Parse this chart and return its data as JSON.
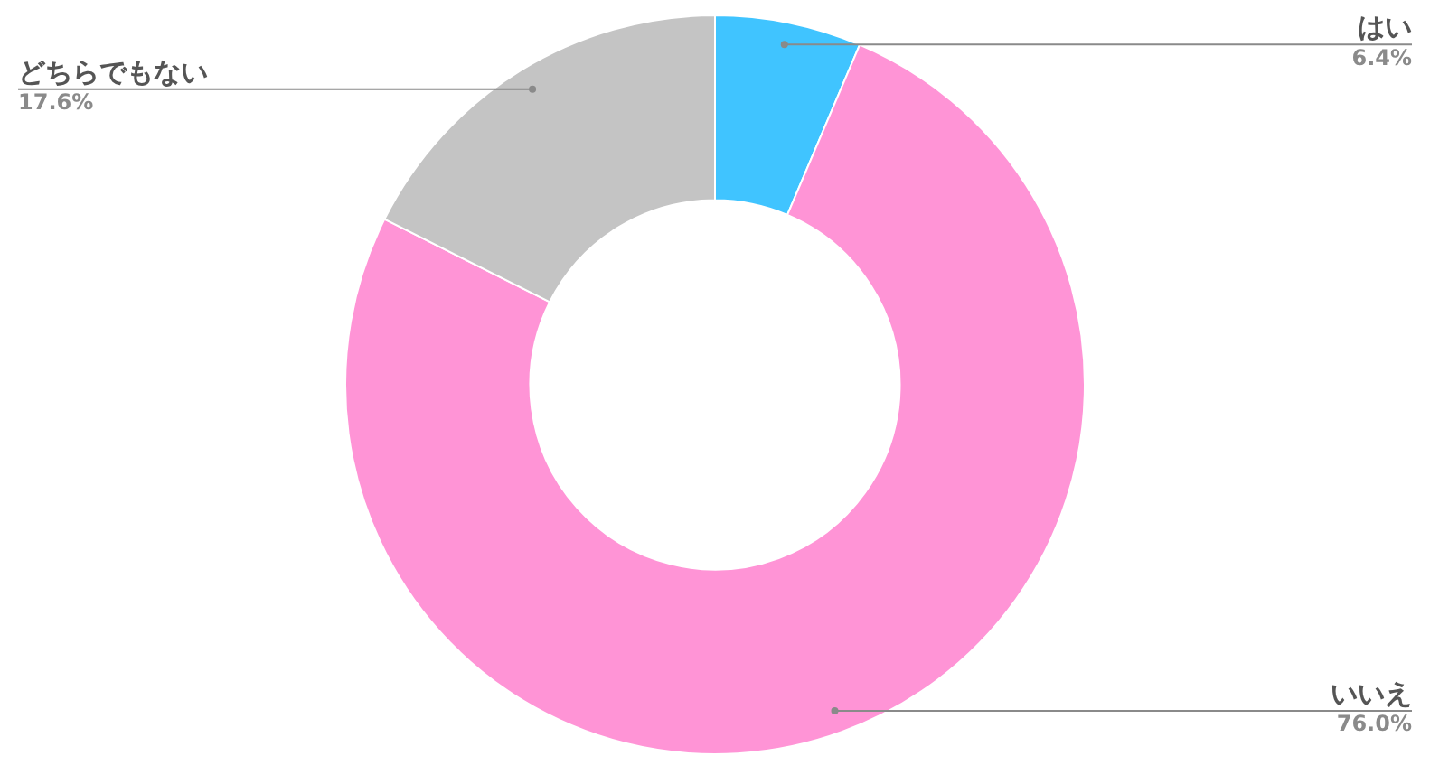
{
  "chart_data": {
    "type": "donut",
    "categories": [
      "はい",
      "いいえ",
      "どちらでもない"
    ],
    "values": [
      6.4,
      76.0,
      17.6
    ],
    "colors": [
      "#40c4ff",
      "#ff94d6",
      "#c4c4c4"
    ],
    "value_labels": [
      "6.4%",
      "76.0%",
      "17.6%"
    ]
  }
}
